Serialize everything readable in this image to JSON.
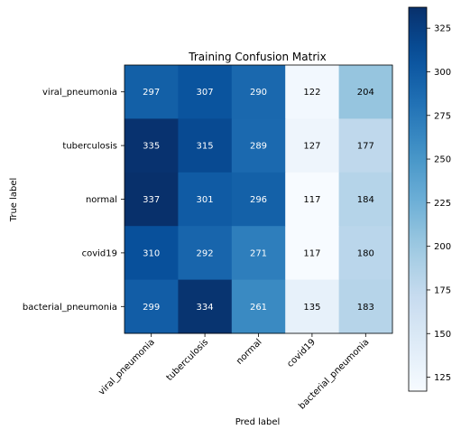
{
  "chart_data": {
    "type": "heatmap",
    "title": "Training Confusion Matrix",
    "xlabel": "Pred label",
    "ylabel": "True label",
    "x_categories": [
      "viral_pneumonia",
      "tuberculosis",
      "normal",
      "covid19",
      "bacterial_pneumonia"
    ],
    "y_categories": [
      "viral_pneumonia",
      "tuberculosis",
      "normal",
      "covid19",
      "bacterial_pneumonia"
    ],
    "values": [
      [
        297,
        307,
        290,
        122,
        204
      ],
      [
        335,
        315,
        289,
        127,
        177
      ],
      [
        337,
        301,
        296,
        117,
        184
      ],
      [
        310,
        292,
        271,
        117,
        180
      ],
      [
        299,
        334,
        261,
        135,
        183
      ]
    ],
    "colorscale": "Blues",
    "colorbar": {
      "range": [
        117,
        337
      ],
      "ticks": [
        125,
        150,
        175,
        200,
        225,
        250,
        275,
        300,
        325
      ]
    },
    "text_threshold": 227
  }
}
